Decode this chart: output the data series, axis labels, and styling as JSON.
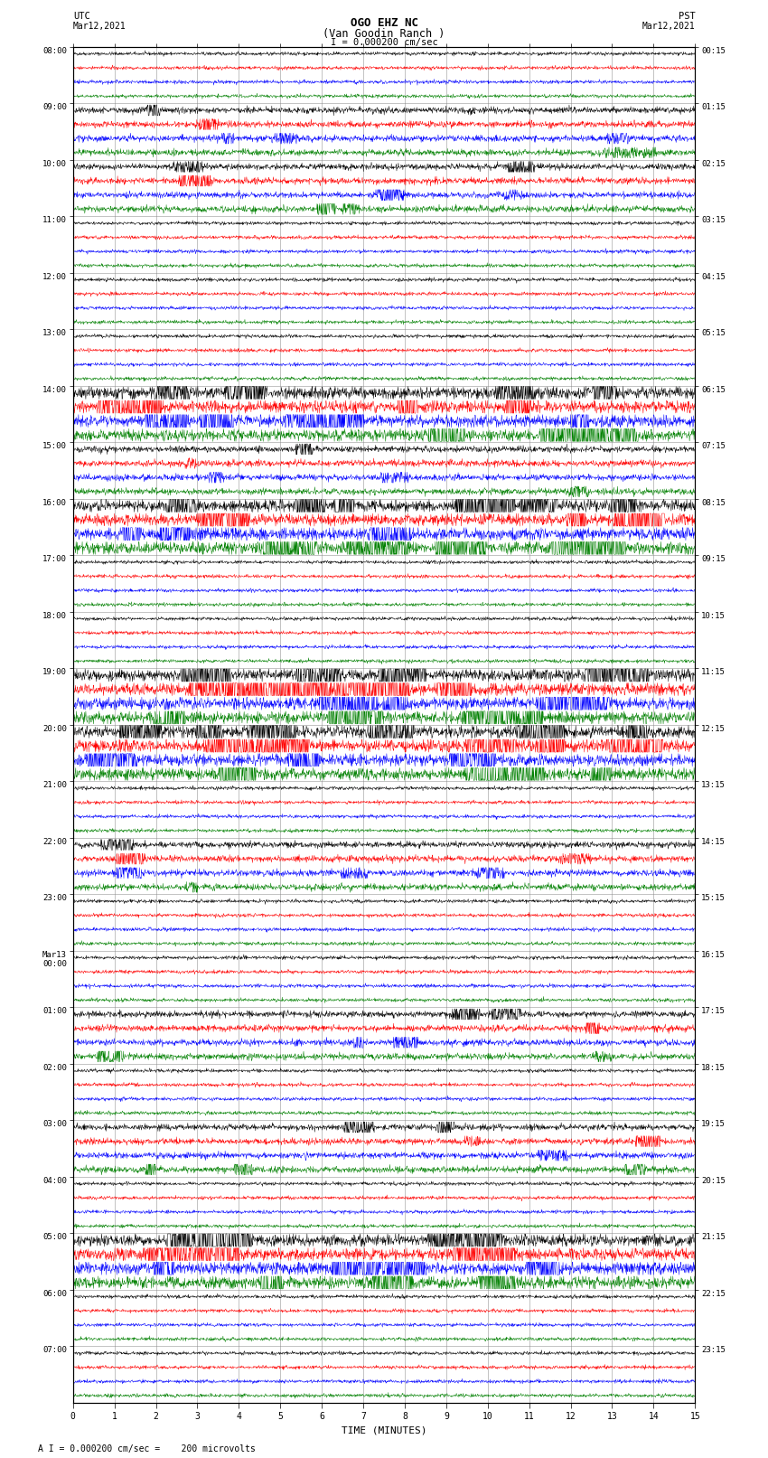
{
  "title_line1": "OGO EHZ NC",
  "title_line2": "(Van Goodin Ranch )",
  "scale_label": "I = 0.000200 cm/sec",
  "footer_label": "A I = 0.000200 cm/sec =    200 microvolts",
  "xlabel": "TIME (MINUTES)",
  "xlim": [
    0,
    15
  ],
  "xticks": [
    0,
    1,
    2,
    3,
    4,
    5,
    6,
    7,
    8,
    9,
    10,
    11,
    12,
    13,
    14,
    15
  ],
  "bg_color": "#ffffff",
  "grid_color": "#888888",
  "trace_colors": [
    "black",
    "red",
    "blue",
    "green"
  ],
  "fig_width": 8.5,
  "fig_height": 16.13,
  "n_groups": 23,
  "seed": 42,
  "left_times_utc": [
    "08:00",
    "09:00",
    "10:00",
    "11:00",
    "12:00",
    "13:00",
    "14:00",
    "15:00",
    "16:00",
    "17:00",
    "18:00",
    "19:00",
    "20:00",
    "21:00",
    "22:00",
    "23:00",
    "Mar13\n00:00",
    "01:00",
    "02:00",
    "03:00",
    "04:00",
    "05:00",
    "06:00",
    "07:00"
  ],
  "right_times_pst": [
    "00:15",
    "01:15",
    "02:15",
    "03:15",
    "04:15",
    "05:15",
    "06:15",
    "07:15",
    "08:15",
    "09:15",
    "10:15",
    "11:15",
    "12:15",
    "13:15",
    "14:15",
    "15:15",
    "16:15",
    "17:15",
    "18:15",
    "19:15",
    "20:15",
    "21:15",
    "22:15",
    "23:15"
  ],
  "high_amp_groups": [
    6,
    8,
    11,
    12,
    21
  ],
  "med_amp_groups": [
    1,
    2,
    7,
    14,
    17,
    19
  ]
}
